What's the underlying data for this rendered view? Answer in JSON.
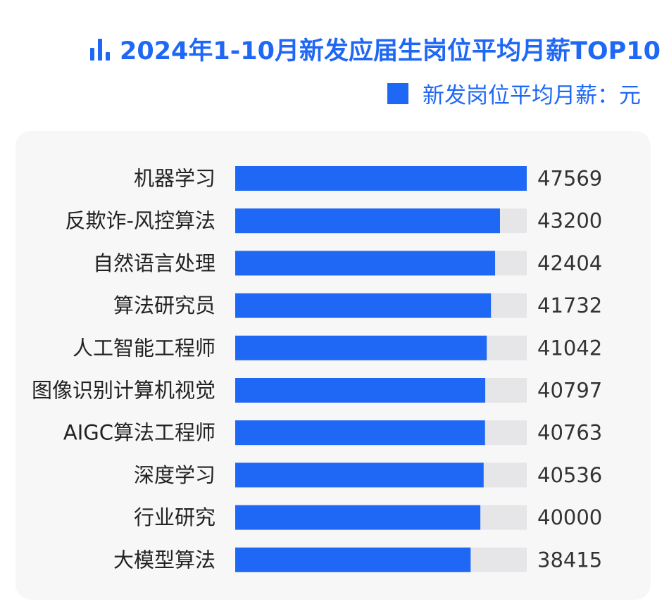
{
  "header": {
    "title": "2024年1-10月新发应届生岗位平均月薪TOP10",
    "title_icon": "bar-chart-icon",
    "legend_label": "新发岗位平均月薪：元"
  },
  "colors": {
    "accent": "#1f68f5",
    "bar": "#1f68f5",
    "track": "#e6e6e8",
    "panel": "#f7f7f8"
  },
  "chart_data": {
    "type": "bar",
    "orientation": "horizontal",
    "title": "2024年1-10月新发应届生岗位平均月薪TOP10",
    "categories": [
      "机器学习",
      "反欺诈-风控算法",
      "自然语言处理",
      "算法研究员",
      "人工智能工程师",
      "图像识别计算机视觉",
      "AIGC算法工程师",
      "深度学习",
      "行业研究",
      "大模型算法"
    ],
    "series": [
      {
        "name": "新发岗位平均月薪：元",
        "values": [
          47569,
          43200,
          42404,
          41732,
          41042,
          40797,
          40763,
          40536,
          40000,
          38415
        ]
      }
    ],
    "xlim": [
      0,
      47569
    ],
    "grid": false,
    "legend_position": "top-right",
    "data_labels": true
  }
}
